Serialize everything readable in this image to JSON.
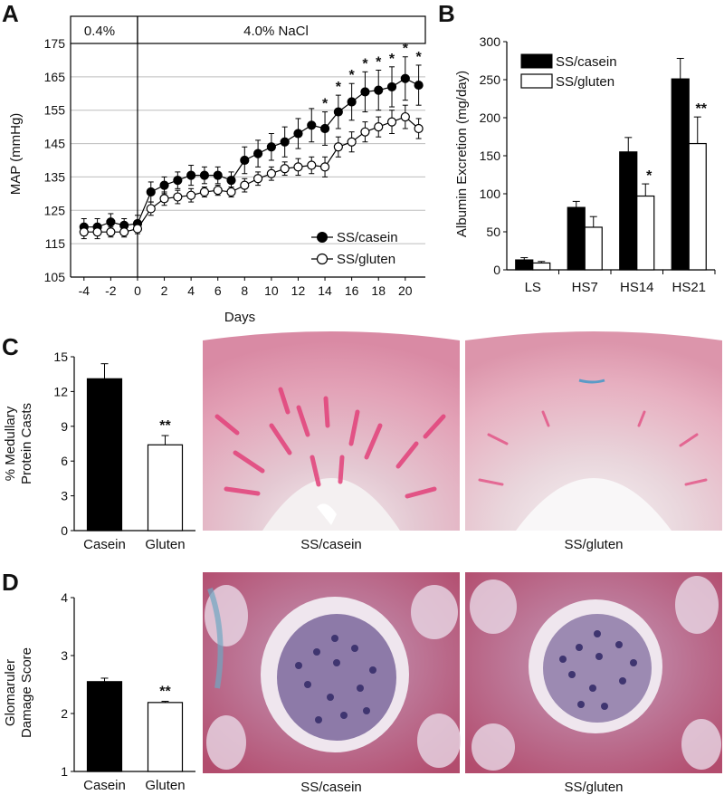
{
  "panel_labels": [
    "A",
    "B",
    "C",
    "D"
  ],
  "chart_data": [
    {
      "id": "A",
      "type": "line",
      "xlabel": "Days",
      "ylabel": "MAP (mmHg)",
      "xlim": [
        -5,
        21.5
      ],
      "ylim": [
        105,
        175
      ],
      "yticks": [
        105,
        115,
        125,
        135,
        145,
        155,
        165,
        175
      ],
      "xticks": [
        -4,
        -2,
        0,
        2,
        4,
        6,
        8,
        10,
        12,
        14,
        16,
        18,
        20
      ],
      "grid": true,
      "phase_labels": [
        "0.4%",
        "4.0% NaCl"
      ],
      "legend_position": "bottom-right",
      "x": [
        -4,
        -3,
        -2,
        -1,
        0,
        1,
        2,
        3,
        4,
        5,
        6,
        7,
        8,
        9,
        10,
        11,
        12,
        13,
        14,
        15,
        16,
        17,
        18,
        19,
        20,
        21
      ],
      "series": [
        {
          "name": "SS/casein",
          "marker": "filled",
          "values": [
            120,
            120,
            121.5,
            120.5,
            121,
            130.5,
            132.5,
            134,
            135.5,
            135.5,
            135.5,
            134,
            140,
            142,
            144,
            145.5,
            148,
            150.5,
            149.5,
            154.5,
            157.5,
            160.5,
            161,
            162,
            164.5,
            162.5
          ],
          "errors": [
            2.5,
            2.5,
            2.5,
            2,
            2.5,
            3,
            2.5,
            2.5,
            3,
            2.5,
            2.5,
            2.5,
            4,
            4,
            4,
            4.5,
            4.5,
            5,
            5,
            5,
            5.5,
            6,
            6,
            6,
            6.5,
            6
          ]
        },
        {
          "name": "SS/gluten",
          "marker": "open",
          "values": [
            118.5,
            118.5,
            118.5,
            118.5,
            119.5,
            125.5,
            128.5,
            129,
            129.5,
            130.5,
            131,
            130.5,
            132.5,
            134.5,
            136,
            137.5,
            138,
            138.5,
            138,
            144,
            145.5,
            148.5,
            150,
            151.5,
            153,
            149.5
          ],
          "errors": [
            2,
            2,
            1.5,
            1.5,
            1.5,
            2,
            2,
            2,
            2,
            1.5,
            1.5,
            1.5,
            2,
            2,
            2,
            2,
            2.5,
            2.5,
            3,
            3,
            3,
            3,
            3,
            3.5,
            3.5,
            3
          ]
        }
      ],
      "significance": [
        {
          "x": 14,
          "label": "*"
        },
        {
          "x": 15,
          "label": "*"
        },
        {
          "x": 17,
          "label": "*"
        },
        {
          "x": 18,
          "label": "*"
        },
        {
          "x": 19,
          "label": "*"
        },
        {
          "x": 20,
          "label": "*"
        },
        {
          "x": 21,
          "label": "*"
        },
        {
          "x": 16,
          "label": "*"
        }
      ]
    },
    {
      "id": "B",
      "type": "bar",
      "ylabel": "Albumin Excretion (mg/day)",
      "ylim": [
        0,
        300
      ],
      "yticks": [
        0,
        50,
        100,
        150,
        200,
        250,
        300
      ],
      "categories": [
        "LS",
        "HS7",
        "HS14",
        "HS21"
      ],
      "legend_position": "top-left",
      "series": [
        {
          "name": "SS/casein",
          "fill": "#000000",
          "values": [
            13,
            82,
            155,
            251
          ],
          "errors": [
            3,
            8,
            19,
            27
          ]
        },
        {
          "name": "SS/gluten",
          "fill": "#ffffff",
          "values": [
            9,
            56,
            97,
            166
          ],
          "errors": [
            2,
            14,
            16,
            35
          ]
        }
      ],
      "significance": [
        {
          "category": 2,
          "series": 1,
          "label": "*"
        },
        {
          "category": 3,
          "series": 1,
          "label": "**"
        }
      ]
    },
    {
      "id": "C",
      "type": "bar",
      "ylabel": [
        "% Medullary",
        "Protein Casts"
      ],
      "ylim": [
        0,
        15
      ],
      "yticks": [
        0,
        3,
        6,
        9,
        12,
        15
      ],
      "categories": [
        "Casein",
        "Gluten"
      ],
      "values": [
        13.1,
        7.4
      ],
      "errors": [
        1.3,
        0.8
      ],
      "fills": [
        "#000000",
        "#ffffff"
      ],
      "significance": [
        {
          "category": 1,
          "label": "**"
        }
      ]
    },
    {
      "id": "D",
      "type": "bar",
      "ylabel": [
        "Glomaruler",
        "Damage Score"
      ],
      "ylim": [
        1,
        4
      ],
      "yticks": [
        1,
        2,
        3,
        4
      ],
      "categories": [
        "Casein",
        "Gluten"
      ],
      "values": [
        2.55,
        2.19
      ],
      "errors": [
        0.06,
        0.02
      ],
      "fills": [
        "#000000",
        "#ffffff"
      ],
      "significance": [
        {
          "category": 1,
          "label": "**"
        }
      ]
    }
  ],
  "images": {
    "C": [
      "SS/casein",
      "SS/gluten"
    ],
    "D": [
      "SS/casein",
      "SS/gluten"
    ]
  }
}
